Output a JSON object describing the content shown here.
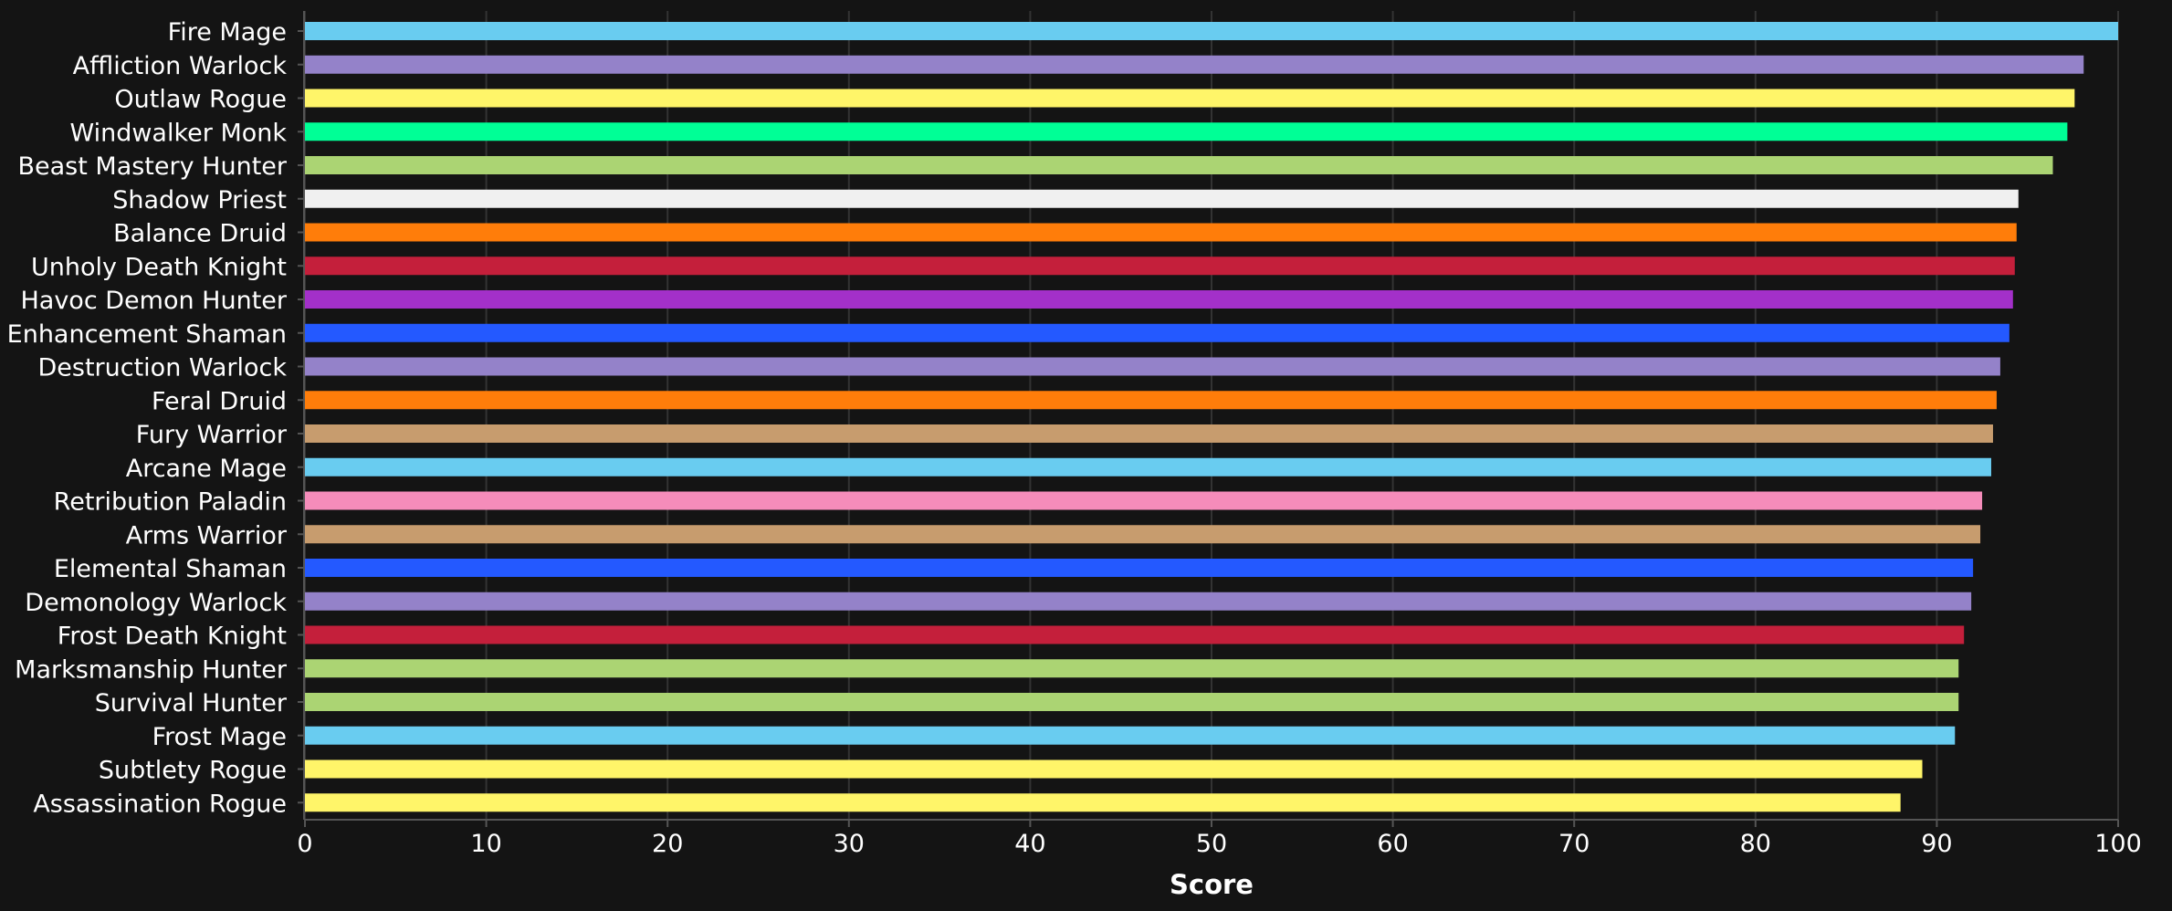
{
  "chart_data": {
    "type": "bar",
    "orientation": "horizontal",
    "title": "",
    "xlabel": "Score",
    "ylabel": "",
    "xlim": [
      0,
      100
    ],
    "xticks": [
      0,
      10,
      20,
      30,
      40,
      50,
      60,
      70,
      80,
      90,
      100
    ],
    "grid": true,
    "legend": "none",
    "background_color": "#141414",
    "bars": [
      {
        "label": "Fire Mage",
        "value": 100.0,
        "color": "#69ccf0"
      },
      {
        "label": "Affliction Warlock",
        "value": 98.1,
        "color": "#9482c9"
      },
      {
        "label": "Outlaw Rogue",
        "value": 97.6,
        "color": "#fff569"
      },
      {
        "label": "Windwalker Monk",
        "value": 97.2,
        "color": "#00ff96"
      },
      {
        "label": "Beast Mastery Hunter",
        "value": 96.4,
        "color": "#abd473"
      },
      {
        "label": "Shadow Priest",
        "value": 94.5,
        "color": "#f0f0f0"
      },
      {
        "label": "Balance Druid",
        "value": 94.4,
        "color": "#ff7d0a"
      },
      {
        "label": "Unholy Death Knight",
        "value": 94.3,
        "color": "#c41f3b"
      },
      {
        "label": "Havoc Demon Hunter",
        "value": 94.2,
        "color": "#a330c9"
      },
      {
        "label": "Enhancement Shaman",
        "value": 94.0,
        "color": "#2459ff"
      },
      {
        "label": "Destruction Warlock",
        "value": 93.5,
        "color": "#9482c9"
      },
      {
        "label": "Feral Druid",
        "value": 93.3,
        "color": "#ff7d0a"
      },
      {
        "label": "Fury Warrior",
        "value": 93.1,
        "color": "#c79c6e"
      },
      {
        "label": "Arcane Mage",
        "value": 93.0,
        "color": "#69ccf0"
      },
      {
        "label": "Retribution Paladin",
        "value": 92.5,
        "color": "#f58cba"
      },
      {
        "label": "Arms Warrior",
        "value": 92.4,
        "color": "#c79c6e"
      },
      {
        "label": "Elemental Shaman",
        "value": 92.0,
        "color": "#2459ff"
      },
      {
        "label": "Demonology Warlock",
        "value": 91.9,
        "color": "#9482c9"
      },
      {
        "label": "Frost Death Knight",
        "value": 91.5,
        "color": "#c41f3b"
      },
      {
        "label": "Marksmanship Hunter",
        "value": 91.2,
        "color": "#abd473"
      },
      {
        "label": "Survival Hunter",
        "value": 91.2,
        "color": "#abd473"
      },
      {
        "label": "Frost Mage",
        "value": 91.0,
        "color": "#69ccf0"
      },
      {
        "label": "Subtlety Rogue",
        "value": 89.2,
        "color": "#fff569"
      },
      {
        "label": "Assassination Rogue",
        "value": 88.0,
        "color": "#fff569"
      }
    ]
  }
}
